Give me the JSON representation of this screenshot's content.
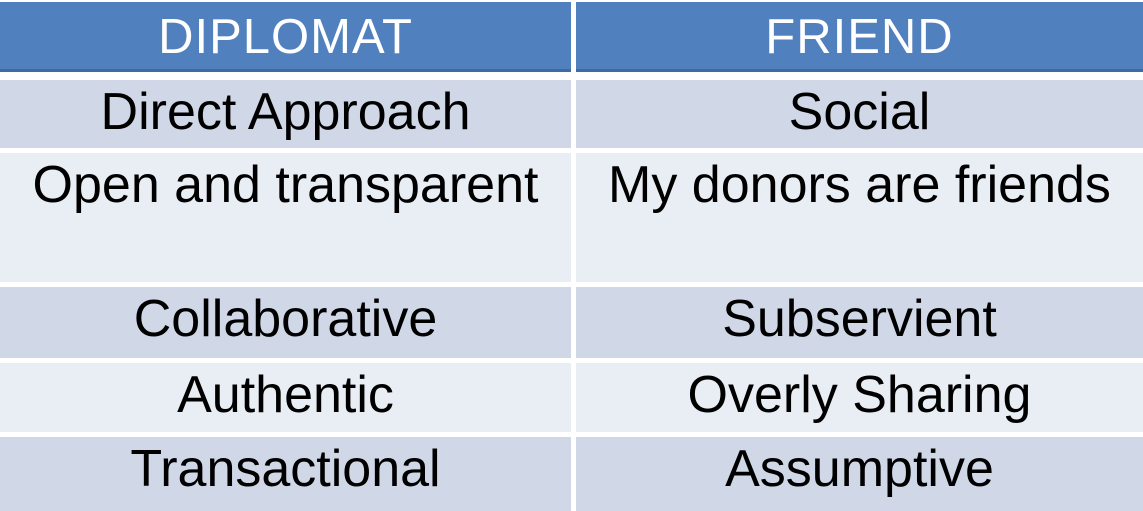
{
  "table": {
    "headers": [
      "DIPLOMAT",
      "FRIEND"
    ],
    "rows": [
      {
        "cells": [
          "Direct Approach",
          "Social"
        ]
      },
      {
        "cells": [
          "Open and transparent",
          "My donors are friends"
        ]
      },
      {
        "cells": [
          "Collaborative",
          "Subservient"
        ]
      },
      {
        "cells": [
          "Authentic",
          "Overly Sharing"
        ]
      },
      {
        "cells": [
          "Transactional",
          "Assumptive"
        ]
      }
    ]
  },
  "colors": {
    "header_bg": "#5081BE",
    "header_text": "#FFFFFF",
    "band_dark": "#D0D8E8",
    "band_light": "#E9EDF4",
    "body_text": "#000000",
    "gap": "#FFFFFF"
  }
}
